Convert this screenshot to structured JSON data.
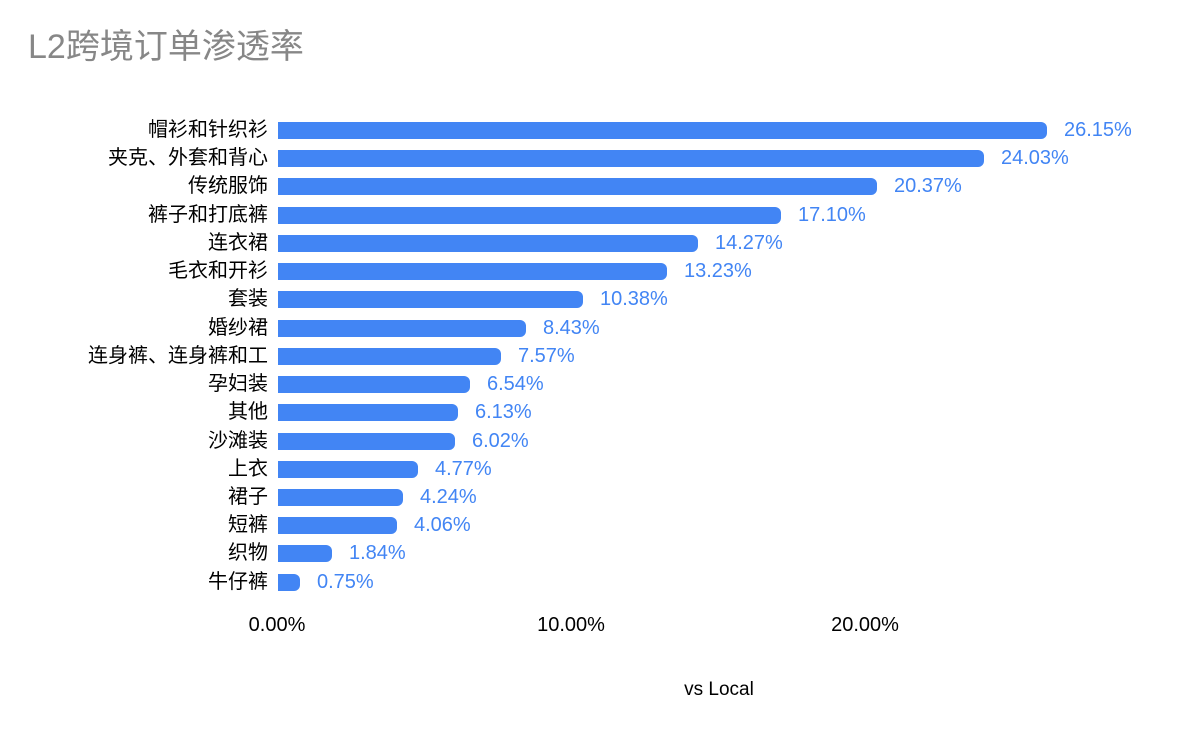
{
  "title": "L2跨境订单渗透率",
  "colors": {
    "bar": "#4285f4",
    "value_label": "#4285f4",
    "title_text": "#878787",
    "axis_text": "#000000",
    "background": "#ffffff"
  },
  "chart_data": {
    "type": "bar",
    "orientation": "horizontal",
    "title": "L2跨境订单渗透率",
    "xlabel": "vs Local",
    "ylabel": "",
    "grid": false,
    "legend": "none",
    "xlim": [
      0,
      30
    ],
    "x_ticks": [
      {
        "label": "0.00%",
        "value": 0
      },
      {
        "label": "10.00%",
        "value": 10
      },
      {
        "label": "20.00%",
        "value": 20
      }
    ],
    "categories": [
      "帽衫和针织衫",
      "夹克、外套和背心",
      "传统服饰",
      "裤子和打底裤",
      "连衣裙",
      "毛衣和开衫",
      "套装",
      "婚纱裙",
      "连身裤、连身裤和工",
      "孕妇装",
      "其他",
      "沙滩装",
      "上衣",
      "裙子",
      "短裤",
      "织物",
      "牛仔裤"
    ],
    "values": [
      26.15,
      24.03,
      20.37,
      17.1,
      14.27,
      13.23,
      10.38,
      8.43,
      7.57,
      6.54,
      6.13,
      6.02,
      4.77,
      4.24,
      4.06,
      1.84,
      0.75
    ],
    "value_labels": [
      "26.15%",
      "24.03%",
      "20.37%",
      "17.10%",
      "14.27%",
      "13.23%",
      "10.38%",
      "8.43%",
      "7.57%",
      "6.54%",
      "6.13%",
      "6.02%",
      "4.77%",
      "4.24%",
      "4.06%",
      "1.84%",
      "0.75%"
    ]
  }
}
